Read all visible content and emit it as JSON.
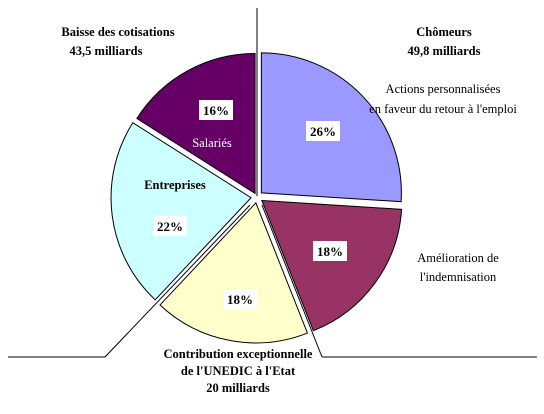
{
  "chart_data": {
    "type": "pie",
    "slices": [
      {
        "label": "Actions personnalisées en faveur du retour à l'emploi",
        "value": 26,
        "display": "26%",
        "color": "#9999ff",
        "group": "Chômeurs"
      },
      {
        "label": "Amélioration de l'indemnisation",
        "value": 18,
        "display": "18%",
        "color": "#993366",
        "group": "Chômeurs"
      },
      {
        "label": "Contribution exceptionnelle de l'UNEDIC à l'Etat",
        "value": 18,
        "display": "18%",
        "color": "#ffffcc",
        "group": "Contribution exceptionnelle"
      },
      {
        "label": "Entreprises",
        "value": 22,
        "display": "22%",
        "color": "#ccffff",
        "group": "Baisse des cotisations"
      },
      {
        "label": "Salariés",
        "value": 16,
        "display": "16%",
        "color": "#660066",
        "group": "Baisse des cotisations"
      }
    ],
    "groups": [
      {
        "name": "Chômeurs",
        "total": "49,8 milliards"
      },
      {
        "name": "Baisse des cotisations",
        "total": "43,5 milliards"
      },
      {
        "name": "Contribution exceptionnelle de l'UNEDIC à l'Etat",
        "total": "20 milliards"
      }
    ]
  },
  "labels": {
    "chomeurs_title": "Chômeurs",
    "chomeurs_total": "49,8 milliards",
    "baisse_title": "Baisse des cotisations",
    "baisse_total": "43,5 milliards",
    "actions_line1": "Actions personnalisées",
    "actions_line2": "en faveur du retour à l'emploi",
    "amelioration_line1": "Amélioration de",
    "amelioration_line2": "l'indemnisation",
    "contribution_line1": "Contribution exceptionnelle",
    "contribution_line2": "de l'UNEDIC à l'Etat",
    "contribution_total": "20 milliards",
    "entreprises": "Entreprises",
    "salaries": "Salariés"
  }
}
